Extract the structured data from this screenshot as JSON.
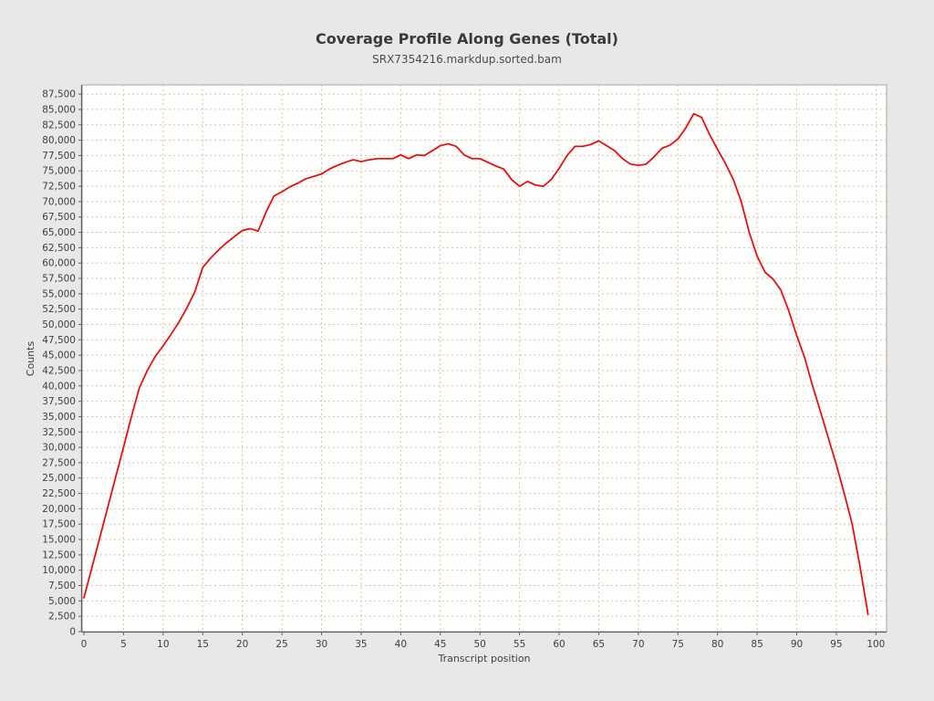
{
  "header": {
    "title": "Coverage Profile Along Genes (Total)",
    "subtitle": "SRX7354216.markdup.sorted.bam"
  },
  "colors": {
    "page_background": "#e8e8e8",
    "plot_background": "#ffffff",
    "grid": "#f3bd93",
    "line": "#fe0000",
    "plot_border": "#a6a6a6",
    "axis": "#5f5f5f",
    "text": "#3e3e3e"
  },
  "chart_data": {
    "type": "line",
    "title": "Coverage Profile Along Genes (Total)",
    "subtitle": "SRX7354216.markdup.sorted.bam",
    "xlabel": "Transcript position",
    "ylabel": "Counts",
    "xlim": [
      -0.3,
      101.4
    ],
    "ylim": [
      0,
      89000
    ],
    "x_ticks": [
      0,
      5,
      10,
      15,
      20,
      25,
      30,
      35,
      40,
      45,
      50,
      55,
      60,
      65,
      70,
      75,
      80,
      85,
      90,
      95,
      100
    ],
    "y_ticks": [
      0,
      2500,
      5000,
      7500,
      10000,
      12500,
      15000,
      17500,
      20000,
      22500,
      25000,
      27500,
      30000,
      32500,
      35000,
      37500,
      40000,
      42500,
      45000,
      47500,
      50000,
      52500,
      55000,
      57500,
      60000,
      62500,
      65000,
      67500,
      70000,
      72500,
      75000,
      77500,
      80000,
      82500,
      85000,
      87500
    ],
    "grid": true,
    "legend": false,
    "line_color": "#fe0000",
    "x": [
      0,
      1,
      2,
      3,
      4,
      5,
      6,
      7,
      8,
      9,
      10,
      11,
      12,
      13,
      14,
      15,
      16,
      17,
      18,
      19,
      20,
      21,
      22,
      23,
      24,
      25,
      26,
      27,
      28,
      29,
      30,
      31,
      32,
      33,
      34,
      35,
      36,
      37,
      38,
      39,
      40,
      41,
      42,
      43,
      44,
      45,
      46,
      47,
      48,
      49,
      50,
      51,
      52,
      53,
      54,
      55,
      56,
      57,
      58,
      59,
      60,
      61,
      62,
      63,
      64,
      65,
      66,
      67,
      68,
      69,
      70,
      71,
      72,
      73,
      74,
      75,
      76,
      77,
      78,
      79,
      80,
      81,
      82,
      83,
      84,
      85,
      86,
      87,
      88,
      89,
      90,
      91,
      92,
      93,
      94,
      95,
      96,
      97,
      98,
      99
    ],
    "values": [
      5500,
      10400,
      15300,
      20200,
      25100,
      30000,
      35000,
      39700,
      42500,
      44800,
      46500,
      48400,
      50400,
      52700,
      55300,
      59300,
      60800,
      62100,
      63300,
      64300,
      65300,
      65600,
      65200,
      68300,
      70900,
      71600,
      72400,
      73000,
      73700,
      74100,
      74500,
      75300,
      75900,
      76400,
      76800,
      76500,
      76800,
      77000,
      77000,
      77000,
      77600,
      77000,
      77600,
      77500,
      78300,
      79100,
      79400,
      79000,
      77600,
      77000,
      77000,
      76400,
      75800,
      75300,
      73600,
      72500,
      73300,
      72700,
      72500,
      73600,
      75400,
      77500,
      79000,
      79000,
      79300,
      79900,
      79100,
      78300,
      77000,
      76100,
      75900,
      76100,
      77300,
      78700,
      79200,
      80200,
      82000,
      84300,
      83700,
      80900,
      78500,
      76200,
      73600,
      70000,
      65000,
      61100,
      58500,
      57400,
      55600,
      52200,
      48200,
      44600,
      40000,
      35800,
      31500,
      27200,
      22500,
      17500,
      10500,
      2800
    ]
  }
}
